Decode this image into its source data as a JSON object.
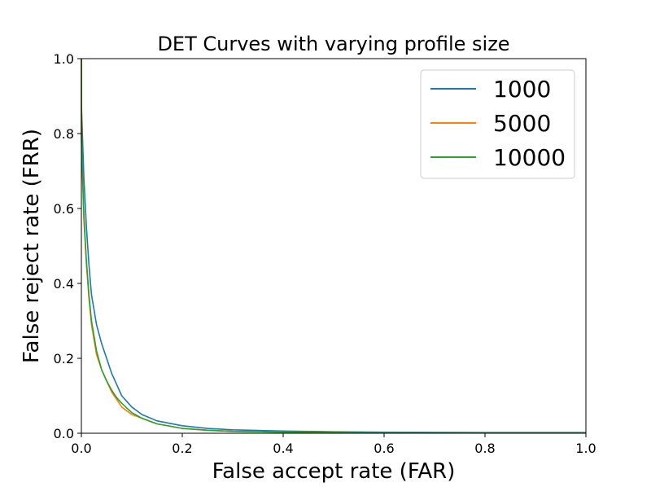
{
  "chart_data": {
    "type": "line",
    "title": "DET Curves with varying profile size",
    "xlabel": "False accept rate (FAR)",
    "ylabel": "False reject rate (FRR)",
    "xlim": [
      0.0,
      1.0
    ],
    "ylim": [
      0.0,
      1.0
    ],
    "xticks": [
      "0.0",
      "0.2",
      "0.4",
      "0.6",
      "0.8",
      "1.0"
    ],
    "yticks": [
      "0.0",
      "0.2",
      "0.4",
      "0.6",
      "0.8",
      "1.0"
    ],
    "grid": false,
    "legend_position": "top-right",
    "series": [
      {
        "name": "1000",
        "color": "#1f77b4",
        "x": [
          0.0,
          0.0,
          0.005,
          0.01,
          0.015,
          0.02,
          0.03,
          0.04,
          0.05,
          0.06,
          0.07,
          0.08,
          0.1,
          0.12,
          0.15,
          0.2,
          0.25,
          0.3,
          0.4,
          0.5,
          0.6,
          0.8,
          1.0
        ],
        "y": [
          1.0,
          0.88,
          0.68,
          0.55,
          0.45,
          0.37,
          0.29,
          0.24,
          0.2,
          0.16,
          0.13,
          0.1,
          0.07,
          0.05,
          0.033,
          0.02,
          0.013,
          0.009,
          0.006,
          0.004,
          0.003,
          0.002,
          0.002
        ]
      },
      {
        "name": "5000",
        "color": "#ff7f0e",
        "x": [
          0.0,
          0.0,
          0.005,
          0.01,
          0.015,
          0.02,
          0.03,
          0.04,
          0.05,
          0.06,
          0.07,
          0.08,
          0.1,
          0.12,
          0.15,
          0.2,
          0.25,
          0.3,
          0.4,
          0.5,
          0.6,
          0.8,
          1.0
        ],
        "y": [
          1.0,
          0.78,
          0.57,
          0.45,
          0.36,
          0.29,
          0.21,
          0.17,
          0.14,
          0.11,
          0.09,
          0.07,
          0.05,
          0.04,
          0.025,
          0.013,
          0.008,
          0.005,
          0.003,
          0.002,
          0.001,
          0.001,
          0.001
        ]
      },
      {
        "name": "10000",
        "color": "#2ca02c",
        "x": [
          0.0,
          0.0,
          0.005,
          0.01,
          0.015,
          0.02,
          0.03,
          0.04,
          0.05,
          0.06,
          0.07,
          0.08,
          0.1,
          0.12,
          0.15,
          0.2,
          0.25,
          0.3,
          0.4,
          0.5,
          0.6,
          0.8,
          1.0
        ],
        "y": [
          1.0,
          0.8,
          0.58,
          0.46,
          0.37,
          0.3,
          0.22,
          0.17,
          0.14,
          0.115,
          0.095,
          0.08,
          0.055,
          0.04,
          0.025,
          0.013,
          0.008,
          0.005,
          0.003,
          0.002,
          0.001,
          0.001,
          0.001
        ]
      }
    ]
  }
}
